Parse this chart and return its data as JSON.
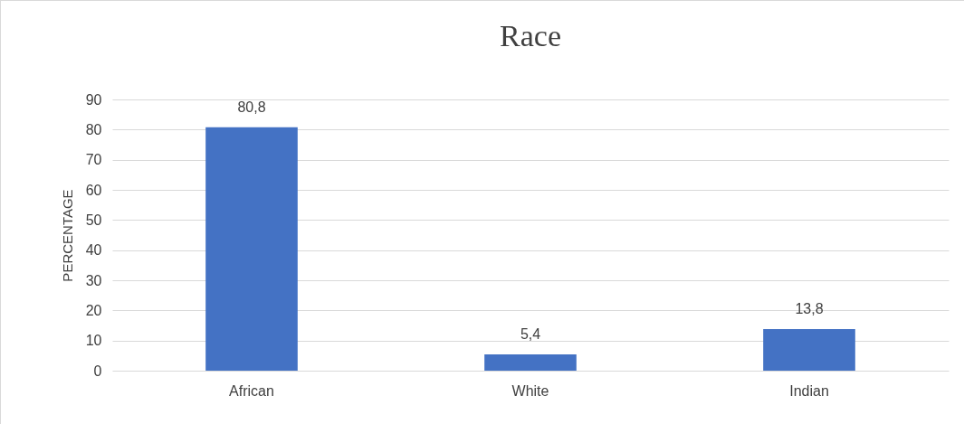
{
  "chart_data": {
    "type": "bar",
    "title": "Race",
    "ylabel": "PERCENTAGE",
    "categories": [
      "African",
      "White",
      "Indian"
    ],
    "values": [
      80.8,
      5.4,
      13.8
    ],
    "value_labels": [
      "80,8",
      "5,4",
      "13,8"
    ],
    "color": "#4472c4",
    "ylim": [
      0,
      90
    ],
    "yticks": [
      0,
      10,
      20,
      30,
      40,
      50,
      60,
      70,
      80,
      90
    ],
    "grid": "y"
  }
}
